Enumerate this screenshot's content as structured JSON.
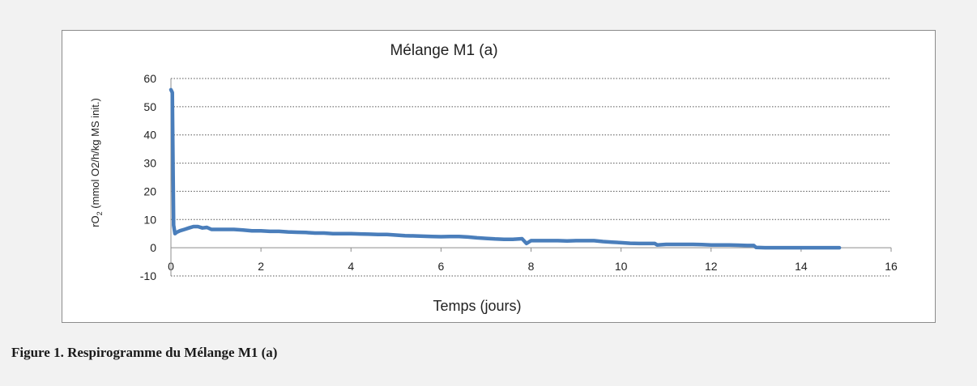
{
  "figure_caption": "Figure 1. Respirogramme du Mélange M1 (a)",
  "chart_data": {
    "type": "line",
    "title": "Mélange M1 (a)",
    "xlabel": "Temps (jours)",
    "ylabel_main": "rO",
    "ylabel_sub": "2",
    "ylabel_rest": " (mmol O2/h/kg MS init.)",
    "xlim": [
      0,
      16
    ],
    "ylim": [
      -10,
      60
    ],
    "xticks": [
      "0",
      "2",
      "4",
      "6",
      "8",
      "10",
      "12",
      "14",
      "16"
    ],
    "yticks": [
      "-10",
      "0",
      "10",
      "20",
      "30",
      "40",
      "50",
      "60"
    ],
    "grid": "horizontal dotted",
    "legend": "none",
    "line_color": "#4a7ebb",
    "series": [
      {
        "x": [
          0.0,
          0.03,
          0.06,
          0.09,
          0.13,
          0.2,
          0.3,
          0.4,
          0.5,
          0.6,
          0.7,
          0.8,
          0.9,
          1.0,
          1.2,
          1.4,
          1.6,
          1.8,
          2.0,
          2.2,
          2.4,
          2.6,
          2.8,
          3.0,
          3.2,
          3.4,
          3.6,
          3.8,
          4.0,
          4.2,
          4.4,
          4.6,
          4.8,
          5.0,
          5.2,
          5.4,
          5.6,
          5.8,
          6.0,
          6.2,
          6.4,
          6.6,
          6.8,
          7.0,
          7.2,
          7.4,
          7.6,
          7.8,
          7.9,
          8.0,
          8.2,
          8.4,
          8.6,
          8.8,
          9.0,
          9.2,
          9.4,
          9.6,
          9.8,
          10.0,
          10.2,
          10.4,
          10.6,
          10.75,
          10.8,
          11.0,
          11.2,
          11.4,
          11.6,
          11.8,
          12.0,
          12.2,
          12.4,
          12.6,
          12.8,
          12.95,
          13.0,
          13.2,
          13.5,
          14.0,
          14.5,
          14.85
        ],
        "y": [
          56,
          55,
          8,
          5,
          5.5,
          6,
          6.5,
          7,
          7.5,
          7.5,
          7,
          7.2,
          6.5,
          6.5,
          6.5,
          6.5,
          6.3,
          6,
          6,
          5.8,
          5.8,
          5.6,
          5.5,
          5.4,
          5.2,
          5.2,
          5,
          5,
          5,
          4.9,
          4.8,
          4.7,
          4.7,
          4.5,
          4.3,
          4.2,
          4.1,
          4,
          3.9,
          4,
          4,
          3.8,
          3.5,
          3.3,
          3.1,
          3,
          3,
          3.2,
          1.5,
          2.5,
          2.5,
          2.5,
          2.5,
          2.4,
          2.5,
          2.5,
          2.5,
          2.2,
          2,
          1.8,
          1.6,
          1.5,
          1.5,
          1.5,
          1,
          1.2,
          1.2,
          1.2,
          1.2,
          1.1,
          1,
          1,
          1,
          0.9,
          0.8,
          0.8,
          0.1,
          0,
          0,
          0,
          0,
          0
        ]
      }
    ]
  }
}
